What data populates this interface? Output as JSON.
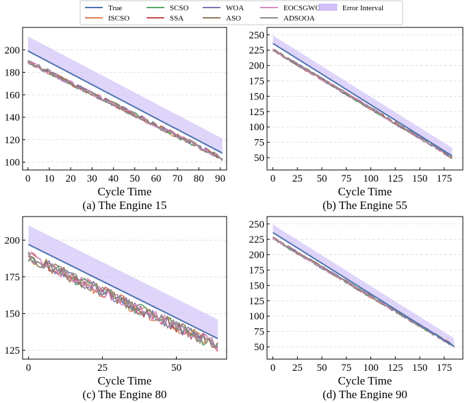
{
  "legend": {
    "entries": [
      {
        "name": "True",
        "color": "#4c72b0",
        "kind": "line"
      },
      {
        "name": "ISCSO",
        "color": "#dd8452",
        "kind": "line"
      },
      {
        "name": "SCSO",
        "color": "#55a868",
        "kind": "line"
      },
      {
        "name": "SSA",
        "color": "#c44e52",
        "kind": "line"
      },
      {
        "name": "WOA",
        "color": "#8172b3",
        "kind": "line"
      },
      {
        "name": "ASO",
        "color": "#937860",
        "kind": "line"
      },
      {
        "name": "EOCSGWO",
        "color": "#da8bc3",
        "kind": "line"
      },
      {
        "name": "ADSOOA",
        "color": "#8c8c8c",
        "kind": "line"
      },
      {
        "name": "Error Interval",
        "color": "#c9b8f5",
        "kind": "band"
      }
    ]
  },
  "chart_data": [
    {
      "type": "line",
      "caption": "(a) The Engine 15",
      "xlabel": "Cycle Time",
      "ylabel": "",
      "xlim": [
        -2.5,
        93
      ],
      "ylim": [
        93,
        220
      ],
      "xticks": [
        0,
        10,
        20,
        30,
        40,
        50,
        60,
        70,
        80,
        90
      ],
      "yticks": [
        100,
        120,
        140,
        160,
        180,
        200
      ],
      "grid": true,
      "true_line": {
        "x": [
          0,
          91
        ],
        "y": [
          199,
          108
        ]
      },
      "error_interval": {
        "x": [
          0,
          91
        ],
        "upper": [
          212,
          121
        ],
        "lower": [
          199,
          108
        ]
      },
      "prediction_band": {
        "x": [
          0,
          91
        ],
        "y": [
          189,
          103
        ],
        "noise": 2.2
      },
      "series_names": [
        "ISCSO",
        "SCSO",
        "SSA",
        "WOA",
        "ASO",
        "EOCSGWO",
        "ADSOOA"
      ]
    },
    {
      "type": "line",
      "caption": "(b) The Engine 55",
      "xlabel": "Cycle Time",
      "ylabel": "",
      "xlim": [
        -6,
        194
      ],
      "ylim": [
        30,
        262
      ],
      "xticks": [
        0,
        25,
        50,
        75,
        100,
        125,
        150,
        175
      ],
      "yticks": [
        50,
        75,
        100,
        125,
        150,
        175,
        200,
        225,
        250
      ],
      "grid": true,
      "true_line": {
        "x": [
          0,
          183
        ],
        "y": [
          236,
          53
        ]
      },
      "error_interval": {
        "x": [
          0,
          183
        ],
        "upper": [
          249,
          66
        ],
        "lower": [
          236,
          53
        ]
      },
      "prediction_band": {
        "x": [
          0,
          183
        ],
        "y": [
          227,
          52
        ],
        "noise": 2.5
      },
      "series_names": [
        "ISCSO",
        "SCSO",
        "SSA",
        "WOA",
        "ASO",
        "EOCSGWO",
        "ADSOOA"
      ]
    },
    {
      "type": "line",
      "caption": "(c) The Engine 80",
      "xlabel": "Cycle Time",
      "ylabel": "",
      "xlim": [
        -2,
        67
      ],
      "ylim": [
        119,
        216
      ],
      "xticks": [
        0,
        25,
        50
      ],
      "yticks": [
        125,
        150,
        175,
        200
      ],
      "grid": true,
      "true_line": {
        "x": [
          0,
          64
        ],
        "y": [
          197,
          133
        ]
      },
      "error_interval": {
        "x": [
          0,
          64
        ],
        "upper": [
          210,
          146
        ],
        "lower": [
          197,
          133
        ]
      },
      "prediction_band": {
        "x": [
          0,
          64
        ],
        "y": [
          189,
          128
        ],
        "noise": 4.2
      },
      "series_names": [
        "ISCSO",
        "SCSO",
        "SSA",
        "WOA",
        "ASO",
        "EOCSGWO",
        "ADSOOA"
      ]
    },
    {
      "type": "line",
      "caption": "(d) The Engine 90",
      "xlabel": "Cycle Time",
      "ylabel": "",
      "xlim": [
        -6,
        194
      ],
      "ylim": [
        30,
        262
      ],
      "xticks": [
        0,
        25,
        50,
        75,
        100,
        125,
        150,
        175
      ],
      "yticks": [
        50,
        75,
        100,
        125,
        150,
        175,
        200,
        225,
        250
      ],
      "grid": true,
      "true_line": {
        "x": [
          0,
          185
        ],
        "y": [
          236,
          51
        ]
      },
      "error_interval": {
        "x": [
          0,
          185
        ],
        "upper": [
          249,
          64
        ],
        "lower": [
          236,
          51
        ]
      },
      "prediction_band": {
        "x": [
          0,
          185
        ],
        "y": [
          226,
          50
        ],
        "noise": 2.5
      },
      "series_names": [
        "ISCSO",
        "SCSO",
        "SSA",
        "WOA",
        "ASO",
        "EOCSGWO",
        "ADSOOA"
      ]
    }
  ]
}
